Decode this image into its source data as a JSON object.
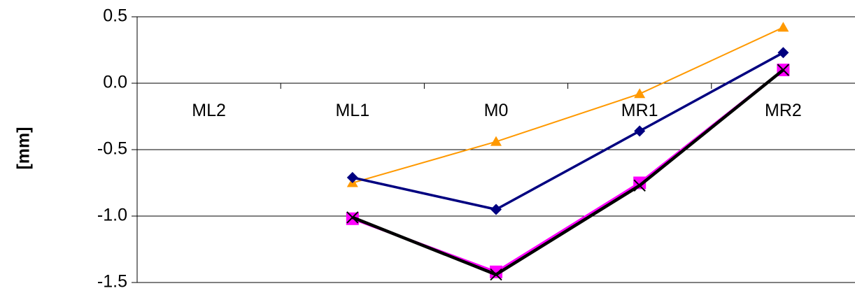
{
  "chart_data": {
    "type": "line",
    "title": "",
    "xlabel": "",
    "ylabel": "[mm]",
    "categories": [
      "ML2",
      "ML1",
      "M0",
      "MR1",
      "MR2"
    ],
    "ylim": [
      -1.5,
      0.5
    ],
    "yticks": [
      0.5,
      0.0,
      -0.5,
      -1.0,
      -1.5
    ],
    "ytick_labels": [
      "0.5",
      "0.0",
      "-0.5",
      "-1.0",
      "-1.5"
    ],
    "grid": "horizontal",
    "series": [
      {
        "values": [
          null,
          -0.75,
          -0.44,
          -0.08,
          0.42
        ],
        "color": "#FF9900",
        "marker": "triangle"
      },
      {
        "values": [
          null,
          -0.71,
          -0.95,
          -0.36,
          0.23
        ],
        "color": "#000080",
        "marker": "diamond"
      },
      {
        "values": [
          null,
          -1.02,
          -1.42,
          -0.75,
          0.1
        ],
        "color": "#FF00FF",
        "marker": "square"
      },
      {
        "values": [
          null,
          -1.01,
          -1.44,
          -0.77,
          0.1
        ],
        "color": "#000000",
        "marker": "x"
      }
    ]
  }
}
